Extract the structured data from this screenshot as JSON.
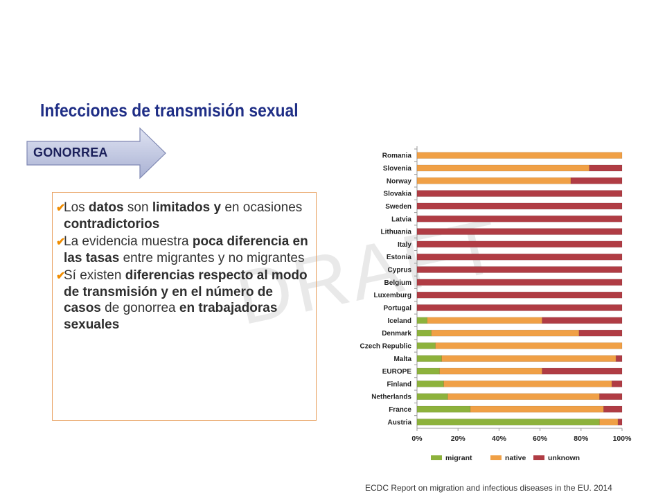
{
  "slide": {
    "title": "Infecciones de transmisión sexual",
    "arrow_label": "GONORREA",
    "watermark": "DRAFT",
    "source": "ECDC Report on migration and infectious diseases in the EU.  2014",
    "bullets": [
      {
        "segments": [
          {
            "text": "Los ",
            "bold": false
          },
          {
            "text": "datos",
            "bold": true
          },
          {
            "text": " son ",
            "bold": false
          },
          {
            "text": "limitados y",
            "bold": true
          },
          {
            "text": " en ocasiones ",
            "bold": false
          },
          {
            "text": "contradictorios",
            "bold": true
          }
        ]
      },
      {
        "segments": [
          {
            "text": "La evidencia muestra ",
            "bold": false
          },
          {
            "text": "poca diferencia en las tasas",
            "bold": true
          },
          {
            "text": " entre migrantes y no migrantes",
            "bold": false
          }
        ]
      },
      {
        "segments": [
          {
            "text": "Sí existen ",
            "bold": false
          },
          {
            "text": "diferencias respecto al modo de transmisión y en el número de casos",
            "bold": true
          },
          {
            "text": " de gonorrea ",
            "bold": false
          },
          {
            "text": "en trabajadoras sexuales",
            "bold": true
          }
        ]
      }
    ]
  },
  "colors": {
    "title": "#1f2e86",
    "migrant": "#8db23c",
    "native": "#f0a046",
    "unknown": "#b03c44",
    "border": "#e8a05e",
    "check": "#f08c00"
  },
  "chart_data": {
    "type": "bar",
    "orientation": "horizontal",
    "stacked": true,
    "title": "",
    "xlabel": "",
    "ylabel": "",
    "xlim": [
      0,
      100
    ],
    "x_ticks": [
      "0%",
      "20%",
      "40%",
      "60%",
      "80%",
      "100%"
    ],
    "legend_position": "bottom",
    "categories": [
      "Romania",
      "Slovenia",
      "Norway",
      "Slovakia",
      "Sweden",
      "Latvia",
      "Lithuania",
      "Italy",
      "Estonia",
      "Cyprus",
      "Belgium",
      "Luxemburg",
      "Portugal",
      "Iceland",
      "Denmark",
      "Czech Republic",
      "Malta",
      "EUROPE",
      "Finland",
      "Netherlands",
      "France",
      "Austria"
    ],
    "series": [
      {
        "name": "migrant",
        "color": "#8db23c",
        "values": [
          0,
          0,
          0,
          0,
          0,
          0,
          0,
          0,
          0,
          0,
          0,
          0,
          0,
          5,
          7,
          9,
          12,
          11,
          13,
          15,
          26,
          89
        ]
      },
      {
        "name": "native",
        "color": "#f0a046",
        "values": [
          100,
          84,
          75,
          0,
          0,
          0,
          0,
          0,
          0,
          0,
          0,
          0,
          0,
          56,
          72,
          91,
          85,
          50,
          82,
          74,
          65,
          9
        ]
      },
      {
        "name": "unknown",
        "color": "#b03c44",
        "values": [
          0,
          16,
          25,
          100,
          100,
          100,
          100,
          100,
          100,
          100,
          100,
          100,
          100,
          39,
          21,
          0,
          3,
          39,
          5,
          11,
          9,
          2
        ]
      }
    ]
  }
}
